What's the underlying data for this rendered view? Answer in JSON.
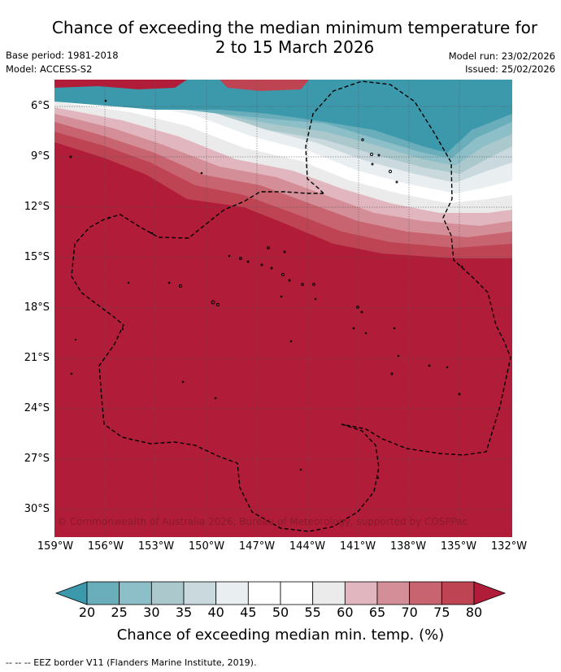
{
  "title_line1": "Chance of exceeding the median minimum temperature for",
  "title_line2": "2 to 15 March 2026",
  "base_period": "Base period: 1981-2018",
  "model": "Model: ACCESS-S2",
  "model_run": "Model run: 23/02/2026",
  "issued": "Issued: 25/02/2026",
  "copyright": "© Commonwealth of Australia 2026, Bureau of Meteorology, supported by COSPPac",
  "lat_labels": [
    "6°S",
    "9°S",
    "12°S",
    "15°S",
    "18°S",
    "21°S",
    "24°S",
    "27°S",
    "30°S"
  ],
  "lon_labels": [
    "159°W",
    "156°W",
    "153°W",
    "150°W",
    "147°W",
    "144°W",
    "141°W",
    "138°W",
    "135°W",
    "132°W"
  ],
  "map_extent": {
    "lon_min": -159,
    "lon_max": -132,
    "lat_min": -31.5,
    "lat_max": -4.5
  },
  "colorbar": {
    "ticks": [
      "20",
      "25",
      "30",
      "35",
      "40",
      "45",
      "50",
      "55",
      "60",
      "65",
      "70",
      "75",
      "80"
    ],
    "colors": {
      "below_20": "#3c99ab",
      "20-25": "#6aaebb",
      "25-30": "#8dbfc9",
      "30-35": "#abc8cc",
      "35-40": "#c9d9dd",
      "40-45": "#e9eff1",
      "45-50": "#ffffff",
      "50-55": "#ffffff",
      "55-60": "#ebebeb",
      "60-65": "#e2b6bf",
      "65-70": "#d48e98",
      "70-75": "#c86470",
      "75-80": "#be4454",
      "above_80": "#b11c38"
    },
    "label": "Chance of exceeding median min. temp. (%)"
  },
  "legend_eez": "--  --  -- EEZ border V11 (Flanders Marine Institute, 2019)."
}
